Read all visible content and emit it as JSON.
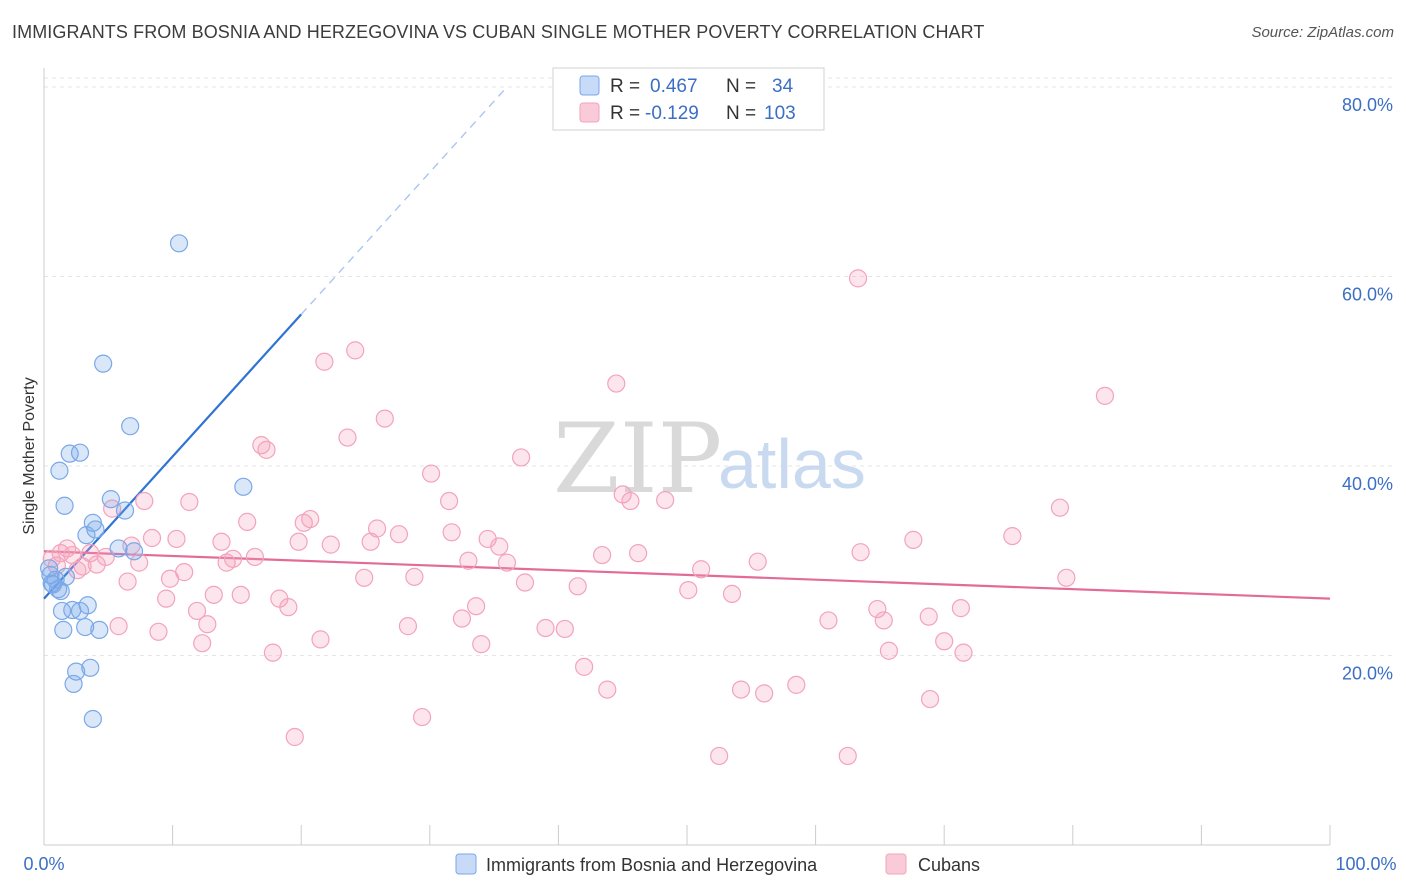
{
  "header": {
    "title": "IMMIGRANTS FROM BOSNIA AND HERZEGOVINA VS CUBAN SINGLE MOTHER POVERTY CORRELATION CHART",
    "source": "Source: ZipAtlas.com"
  },
  "watermark": {
    "zip": "ZIP",
    "atlas": "atlas"
  },
  "legend": {
    "rows": [
      {
        "r_label": "R =",
        "r_value": "0.467",
        "n_label": "N =",
        "n_value": "34",
        "color": "#a9c6f2"
      },
      {
        "r_label": "R =",
        "r_value": "-0.129",
        "n_label": "N =",
        "n_value": "103",
        "color": "#f6b7cb"
      }
    ]
  },
  "chart_data": {
    "type": "scatter",
    "title": "IMMIGRANTS FROM BOSNIA AND HERZEGOVINA VS CUBAN SINGLE MOTHER POVERTY CORRELATION CHART",
    "xlabel": "",
    "ylabel": "Single Mother Poverty",
    "xlim": [
      0,
      100
    ],
    "ylim": [
      0,
      82
    ],
    "x_tick_labels": [
      "0.0%",
      "100.0%"
    ],
    "y_ticks": [
      20,
      40,
      60,
      80
    ],
    "y_tick_labels": [
      "20.0%",
      "40.0%",
      "60.0%",
      "80.0%"
    ],
    "grid": true,
    "legend_position": "bottom",
    "series": [
      {
        "name": "Immigrants from Bosnia and Herzegovina",
        "color": "#7aa8e8",
        "line_color": "#2f73d3",
        "trend": {
          "x0": 0,
          "y0": 26,
          "x1": 20,
          "y1": 56,
          "dash_to_x": 36,
          "dash_to_y": 80
        },
        "points": [
          [
            0.5,
            28.5
          ],
          [
            0.7,
            27.5
          ],
          [
            0.9,
            28.0
          ],
          [
            1.1,
            27.0
          ],
          [
            1.3,
            26.8
          ],
          [
            1.7,
            28.3
          ],
          [
            1.2,
            39.5
          ],
          [
            1.6,
            35.8
          ],
          [
            2.0,
            41.3
          ],
          [
            2.8,
            41.4
          ],
          [
            3.3,
            32.7
          ],
          [
            3.8,
            34.0
          ],
          [
            4.0,
            33.3
          ],
          [
            1.4,
            24.7
          ],
          [
            1.5,
            22.7
          ],
          [
            2.2,
            24.8
          ],
          [
            2.8,
            24.7
          ],
          [
            3.2,
            23.0
          ],
          [
            3.4,
            25.3
          ],
          [
            4.3,
            22.7
          ],
          [
            2.3,
            17.0
          ],
          [
            2.5,
            18.3
          ],
          [
            3.6,
            18.7
          ],
          [
            3.8,
            13.3
          ],
          [
            4.6,
            50.8
          ],
          [
            5.2,
            36.5
          ],
          [
            5.8,
            31.3
          ],
          [
            6.3,
            35.3
          ],
          [
            6.7,
            44.2
          ],
          [
            7.0,
            31.0
          ],
          [
            10.5,
            63.5
          ],
          [
            15.5,
            37.8
          ],
          [
            0.4,
            29.2
          ],
          [
            0.6,
            27.6
          ]
        ]
      },
      {
        "name": "Cubans",
        "color": "#f3a3bc",
        "line_color": "#e36b97",
        "trend": {
          "x0": 0,
          "y0": 31,
          "x1": 100,
          "y1": 26
        },
        "points": [
          [
            0.6,
            30.2
          ],
          [
            1.0,
            29.5
          ],
          [
            1.3,
            30.8
          ],
          [
            1.8,
            31.3
          ],
          [
            2.2,
            30.6
          ],
          [
            2.6,
            29.0
          ],
          [
            3.0,
            29.4
          ],
          [
            3.6,
            30.8
          ],
          [
            4.1,
            29.6
          ],
          [
            4.8,
            30.4
          ],
          [
            5.3,
            35.5
          ],
          [
            5.8,
            23.1
          ],
          [
            6.5,
            27.8
          ],
          [
            6.8,
            31.6
          ],
          [
            7.4,
            29.8
          ],
          [
            7.8,
            36.3
          ],
          [
            8.4,
            32.4
          ],
          [
            8.9,
            22.5
          ],
          [
            9.5,
            26.0
          ],
          [
            9.8,
            28.1
          ],
          [
            10.3,
            32.3
          ],
          [
            10.9,
            28.8
          ],
          [
            11.3,
            36.2
          ],
          [
            11.9,
            24.7
          ],
          [
            12.3,
            21.3
          ],
          [
            12.7,
            23.3
          ],
          [
            13.2,
            26.4
          ],
          [
            13.8,
            32.0
          ],
          [
            14.2,
            29.8
          ],
          [
            14.7,
            30.2
          ],
          [
            15.3,
            26.4
          ],
          [
            15.8,
            34.1
          ],
          [
            16.4,
            30.4
          ],
          [
            16.9,
            42.2
          ],
          [
            17.3,
            41.7
          ],
          [
            17.8,
            20.3
          ],
          [
            18.3,
            26.0
          ],
          [
            19.0,
            25.1
          ],
          [
            19.5,
            11.4
          ],
          [
            19.8,
            32.0
          ],
          [
            20.2,
            34.0
          ],
          [
            20.7,
            34.4
          ],
          [
            21.5,
            21.7
          ],
          [
            21.8,
            51.0
          ],
          [
            22.3,
            31.7
          ],
          [
            23.6,
            43.0
          ],
          [
            24.2,
            52.2
          ],
          [
            24.9,
            28.2
          ],
          [
            25.4,
            32.0
          ],
          [
            25.9,
            33.4
          ],
          [
            26.5,
            45.0
          ],
          [
            27.6,
            32.8
          ],
          [
            28.3,
            23.1
          ],
          [
            28.8,
            28.3
          ],
          [
            29.4,
            13.5
          ],
          [
            30.1,
            39.2
          ],
          [
            31.5,
            36.3
          ],
          [
            31.7,
            33.0
          ],
          [
            32.5,
            23.9
          ],
          [
            33.0,
            30.0
          ],
          [
            33.6,
            25.2
          ],
          [
            34.0,
            21.2
          ],
          [
            34.5,
            32.3
          ],
          [
            35.4,
            31.5
          ],
          [
            36.0,
            29.8
          ],
          [
            37.1,
            40.9
          ],
          [
            37.4,
            27.7
          ],
          [
            39.0,
            22.9
          ],
          [
            40.5,
            22.8
          ],
          [
            41.5,
            27.3
          ],
          [
            42.0,
            18.8
          ],
          [
            43.4,
            30.6
          ],
          [
            43.8,
            16.4
          ],
          [
            44.5,
            48.7
          ],
          [
            45.0,
            37.0
          ],
          [
            45.6,
            36.3
          ],
          [
            46.2,
            30.8
          ],
          [
            48.3,
            36.4
          ],
          [
            50.1,
            26.9
          ],
          [
            51.1,
            29.1
          ],
          [
            52.5,
            9.4
          ],
          [
            53.5,
            26.5
          ],
          [
            54.2,
            16.4
          ],
          [
            55.5,
            29.9
          ],
          [
            56.0,
            16.0
          ],
          [
            58.5,
            16.9
          ],
          [
            61.0,
            23.7
          ],
          [
            62.5,
            9.4
          ],
          [
            63.3,
            59.8
          ],
          [
            63.5,
            30.9
          ],
          [
            64.8,
            24.9
          ],
          [
            65.3,
            23.7
          ],
          [
            65.7,
            20.5
          ],
          [
            67.6,
            32.2
          ],
          [
            68.8,
            24.1
          ],
          [
            68.9,
            15.4
          ],
          [
            70.0,
            21.5
          ],
          [
            71.3,
            25.0
          ],
          [
            71.5,
            20.3
          ],
          [
            75.3,
            32.6
          ],
          [
            79.0,
            35.6
          ],
          [
            79.5,
            28.2
          ],
          [
            82.5,
            47.4
          ]
        ]
      }
    ]
  }
}
